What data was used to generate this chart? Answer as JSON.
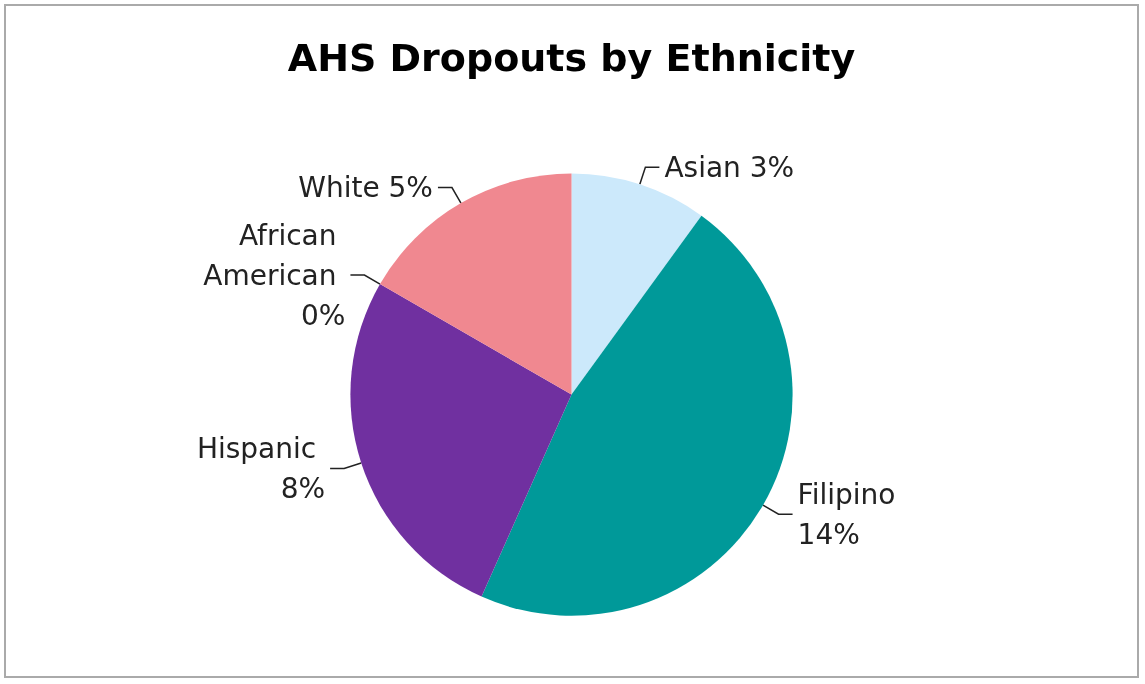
{
  "chart_data": {
    "type": "pie",
    "title": "AHS Dropouts by Ethnicity",
    "categories": [
      "Asian",
      "Filipino",
      "Hispanic",
      "African American",
      "White"
    ],
    "values": [
      3,
      14,
      8,
      0,
      5
    ],
    "colors": [
      "#cce9fb",
      "#009999",
      "#7030a0",
      "#4f81bd",
      "#f08890"
    ],
    "value_labels": [
      "3%",
      "14%",
      "8%",
      "0%",
      "5%"
    ]
  }
}
